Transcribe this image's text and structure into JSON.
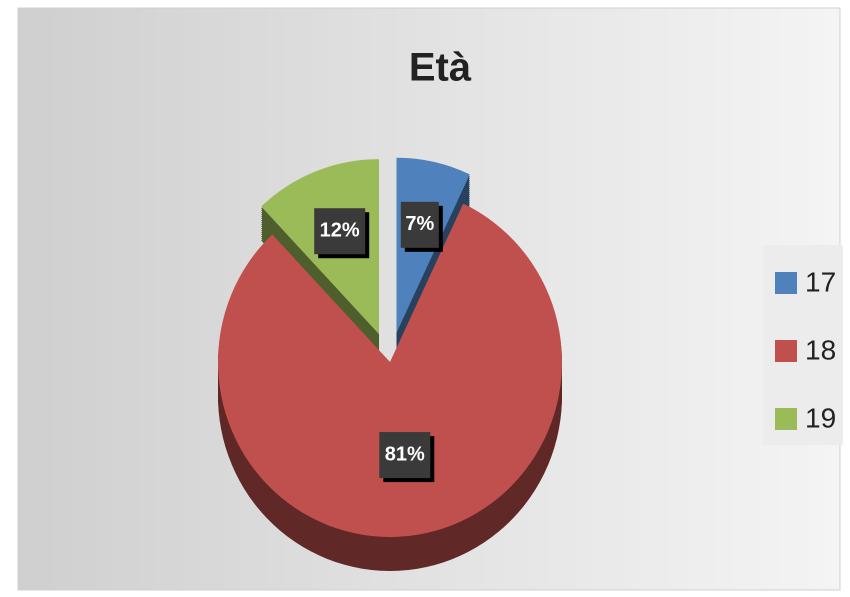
{
  "chart_data": {
    "type": "pie",
    "title": "Età",
    "categories": [
      "17",
      "18",
      "19"
    ],
    "values": [
      7,
      81,
      12
    ],
    "value_labels": [
      "7%",
      "81%",
      "12%"
    ],
    "colors": [
      "#4f81bd",
      "#c0504d",
      "#9bbb59"
    ],
    "legend": "right"
  }
}
